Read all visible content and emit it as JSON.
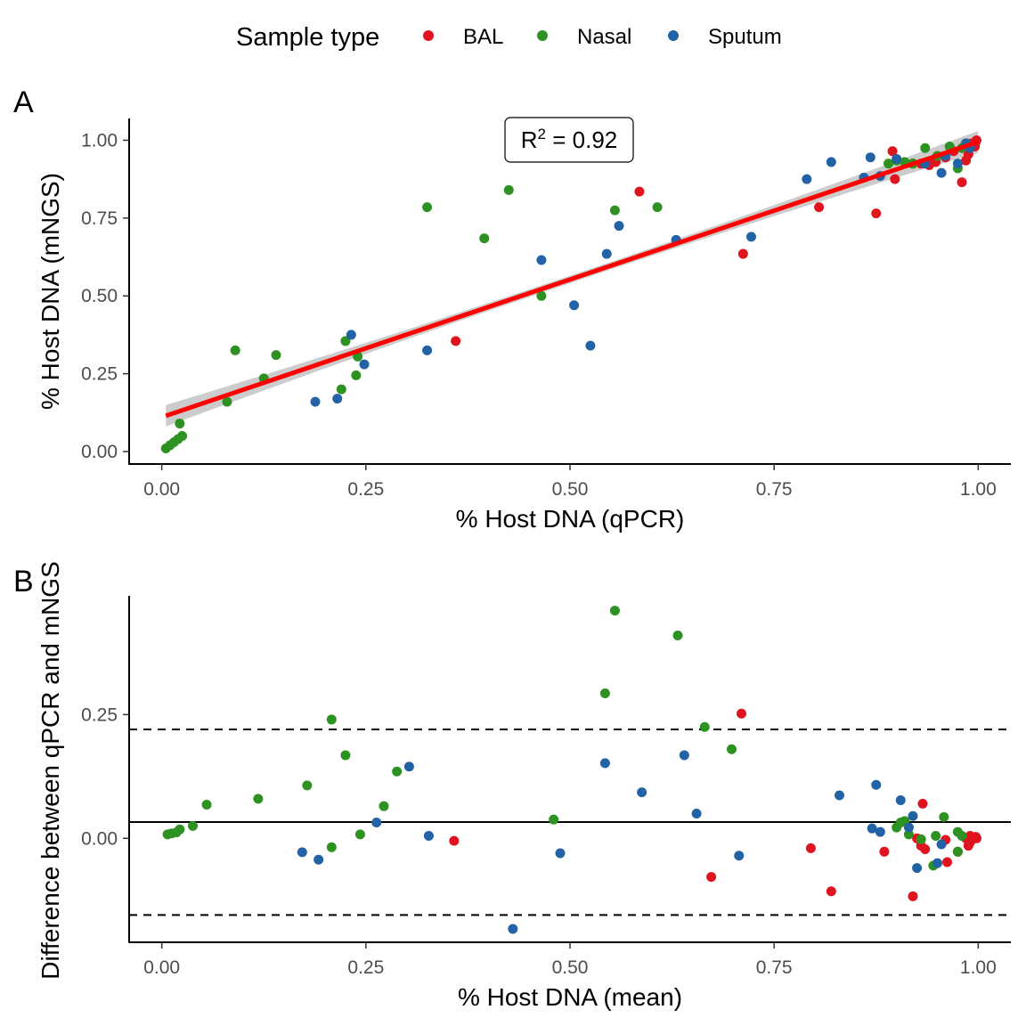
{
  "legend": {
    "title": "Sample type",
    "entries": [
      {
        "label": "BAL",
        "color": "#e0141e"
      },
      {
        "label": "Nasal",
        "color": "#2e9222"
      },
      {
        "label": "Sputum",
        "color": "#2363a5"
      }
    ]
  },
  "chart_data": [
    {
      "type": "scatter",
      "panel_label": "A",
      "xlabel": "% Host DNA (qPCR)",
      "ylabel": "% Host DNA (mNGS)",
      "xlim": [
        -0.04,
        1.04
      ],
      "ylim": [
        -0.04,
        1.07
      ],
      "xticks": [
        "0.00",
        "0.25",
        "0.50",
        "0.75",
        "1.00"
      ],
      "yticks": [
        "0.00",
        "0.25",
        "0.50",
        "0.75",
        "1.00"
      ],
      "grid": false,
      "annotation": {
        "prefix": "R",
        "sup": "2",
        "suffix": " = 0.92"
      },
      "regression_line": {
        "color": "#ff0000",
        "x": [
          0.005,
          1.0
        ],
        "y": [
          0.115,
          0.995
        ],
        "ci_color": "#cccccc",
        "ci_halfwidth_ends": 0.035,
        "ci_halfwidth_mid": 0.012
      },
      "series": [
        {
          "name": "BAL",
          "color": "#e0141e",
          "points": [
            [
              0.36,
              0.355
            ],
            [
              0.585,
              0.835
            ],
            [
              0.712,
              0.635
            ],
            [
              0.805,
              0.785
            ],
            [
              0.875,
              0.765
            ],
            [
              0.895,
              0.965
            ],
            [
              0.898,
              0.875
            ],
            [
              0.92,
              0.925
            ],
            [
              0.93,
              0.925
            ],
            [
              0.94,
              0.92
            ],
            [
              0.948,
              0.93
            ],
            [
              0.96,
              0.945
            ],
            [
              0.97,
              0.965
            ],
            [
              0.98,
              0.865
            ],
            [
              0.985,
              0.935
            ],
            [
              0.988,
              0.955
            ],
            [
              0.99,
              0.975
            ],
            [
              0.993,
              0.985
            ],
            [
              0.995,
              0.99
            ],
            [
              0.997,
              0.995
            ],
            [
              0.998,
              1.0
            ],
            [
              0.996,
              0.98
            ],
            [
              0.992,
              0.99
            ]
          ]
        },
        {
          "name": "Nasal",
          "color": "#2e9222",
          "points": [
            [
              0.005,
              0.01
            ],
            [
              0.01,
              0.02
            ],
            [
              0.015,
              0.03
            ],
            [
              0.02,
              0.04
            ],
            [
              0.025,
              0.05
            ],
            [
              0.022,
              0.09
            ],
            [
              0.08,
              0.16
            ],
            [
              0.09,
              0.325
            ],
            [
              0.125,
              0.235
            ],
            [
              0.14,
              0.31
            ],
            [
              0.22,
              0.2
            ],
            [
              0.225,
              0.355
            ],
            [
              0.238,
              0.245
            ],
            [
              0.24,
              0.305
            ],
            [
              0.325,
              0.785
            ],
            [
              0.395,
              0.685
            ],
            [
              0.425,
              0.84
            ],
            [
              0.465,
              0.5
            ],
            [
              0.555,
              0.775
            ],
            [
              0.607,
              0.785
            ],
            [
              0.89,
              0.925
            ],
            [
              0.9,
              0.935
            ],
            [
              0.91,
              0.93
            ],
            [
              0.92,
              0.925
            ],
            [
              0.935,
              0.975
            ],
            [
              0.95,
              0.95
            ],
            [
              0.965,
              0.98
            ],
            [
              0.975,
              0.91
            ],
            [
              0.98,
              0.975
            ],
            [
              0.985,
              0.99
            ]
          ]
        },
        {
          "name": "Sputum",
          "color": "#2363a5",
          "points": [
            [
              0.188,
              0.16
            ],
            [
              0.215,
              0.17
            ],
            [
              0.232,
              0.375
            ],
            [
              0.248,
              0.28
            ],
            [
              0.325,
              0.325
            ],
            [
              0.465,
              0.615
            ],
            [
              0.505,
              0.47
            ],
            [
              0.525,
              0.34
            ],
            [
              0.545,
              0.635
            ],
            [
              0.56,
              0.725
            ],
            [
              0.63,
              0.68
            ],
            [
              0.722,
              0.69
            ],
            [
              0.79,
              0.875
            ],
            [
              0.82,
              0.93
            ],
            [
              0.86,
              0.88
            ],
            [
              0.868,
              0.945
            ],
            [
              0.88,
              0.885
            ],
            [
              0.9,
              0.94
            ],
            [
              0.935,
              0.925
            ],
            [
              0.955,
              0.895
            ],
            [
              0.96,
              0.95
            ],
            [
              0.975,
              0.925
            ],
            [
              0.985,
              0.99
            ],
            [
              0.99,
              0.975
            ]
          ]
        }
      ]
    },
    {
      "type": "scatter",
      "panel_label": "B",
      "xlabel": "% Host DNA (mean)",
      "ylabel": "Difference between qPCR and mNGS",
      "xlim": [
        -0.04,
        1.04
      ],
      "ylim": [
        -0.21,
        0.49
      ],
      "xticks": [
        "0.00",
        "0.25",
        "0.50",
        "0.75",
        "1.00"
      ],
      "yticks": [
        "0.00",
        "0.25"
      ],
      "ytick_values": [
        0.0,
        0.25
      ],
      "grid": false,
      "mean_line": 0.033,
      "limits_of_agreement": [
        0.22,
        -0.155
      ],
      "series": [
        {
          "name": "BAL",
          "color": "#e0141e",
          "points": [
            [
              0.358,
              -0.005
            ],
            [
              0.673,
              -0.078
            ],
            [
              0.71,
              0.252
            ],
            [
              0.795,
              -0.02
            ],
            [
              0.82,
              -0.107
            ],
            [
              0.885,
              -0.027
            ],
            [
              0.92,
              -0.117
            ],
            [
              0.925,
              0.0
            ],
            [
              0.93,
              -0.015
            ],
            [
              0.932,
              0.07
            ],
            [
              0.935,
              -0.022
            ],
            [
              0.96,
              -0.003
            ],
            [
              0.962,
              -0.048
            ],
            [
              0.975,
              -0.027
            ],
            [
              0.985,
              0.0
            ],
            [
              0.988,
              -0.015
            ],
            [
              0.99,
              0.005
            ],
            [
              0.993,
              0.002
            ],
            [
              0.995,
              0.0
            ],
            [
              0.997,
              0.003
            ],
            [
              0.99,
              -0.008
            ],
            [
              0.998,
              0.0
            ]
          ]
        },
        {
          "name": "Nasal",
          "color": "#2e9222",
          "points": [
            [
              0.007,
              0.008
            ],
            [
              0.012,
              0.01
            ],
            [
              0.018,
              0.012
            ],
            [
              0.022,
              0.018
            ],
            [
              0.038,
              0.025
            ],
            [
              0.055,
              0.068
            ],
            [
              0.118,
              0.08
            ],
            [
              0.178,
              0.107
            ],
            [
              0.208,
              -0.018
            ],
            [
              0.208,
              0.24
            ],
            [
              0.225,
              0.168
            ],
            [
              0.243,
              0.008
            ],
            [
              0.272,
              0.065
            ],
            [
              0.288,
              0.135
            ],
            [
              0.48,
              0.038
            ],
            [
              0.543,
              0.293
            ],
            [
              0.555,
              0.46
            ],
            [
              0.632,
              0.41
            ],
            [
              0.665,
              0.225
            ],
            [
              0.698,
              0.18
            ],
            [
              0.9,
              0.022
            ],
            [
              0.905,
              0.032
            ],
            [
              0.91,
              0.035
            ],
            [
              0.915,
              0.008
            ],
            [
              0.93,
              -0.002
            ],
            [
              0.945,
              -0.055
            ],
            [
              0.948,
              0.005
            ],
            [
              0.958,
              0.043
            ],
            [
              0.975,
              -0.027
            ],
            [
              0.975,
              0.013
            ],
            [
              0.98,
              0.005
            ]
          ]
        },
        {
          "name": "Sputum",
          "color": "#2363a5",
          "points": [
            [
              0.172,
              -0.028
            ],
            [
              0.192,
              -0.043
            ],
            [
              0.263,
              0.032
            ],
            [
              0.303,
              0.145
            ],
            [
              0.327,
              0.005
            ],
            [
              0.43,
              -0.183
            ],
            [
              0.488,
              -0.03
            ],
            [
              0.543,
              0.152
            ],
            [
              0.588,
              0.093
            ],
            [
              0.64,
              0.168
            ],
            [
              0.655,
              0.05
            ],
            [
              0.707,
              -0.035
            ],
            [
              0.83,
              0.087
            ],
            [
              0.87,
              0.02
            ],
            [
              0.875,
              0.108
            ],
            [
              0.88,
              0.013
            ],
            [
              0.905,
              0.077
            ],
            [
              0.915,
              0.022
            ],
            [
              0.92,
              0.045
            ],
            [
              0.925,
              -0.06
            ],
            [
              0.95,
              -0.05
            ],
            [
              0.955,
              -0.012
            ]
          ]
        }
      ]
    }
  ]
}
